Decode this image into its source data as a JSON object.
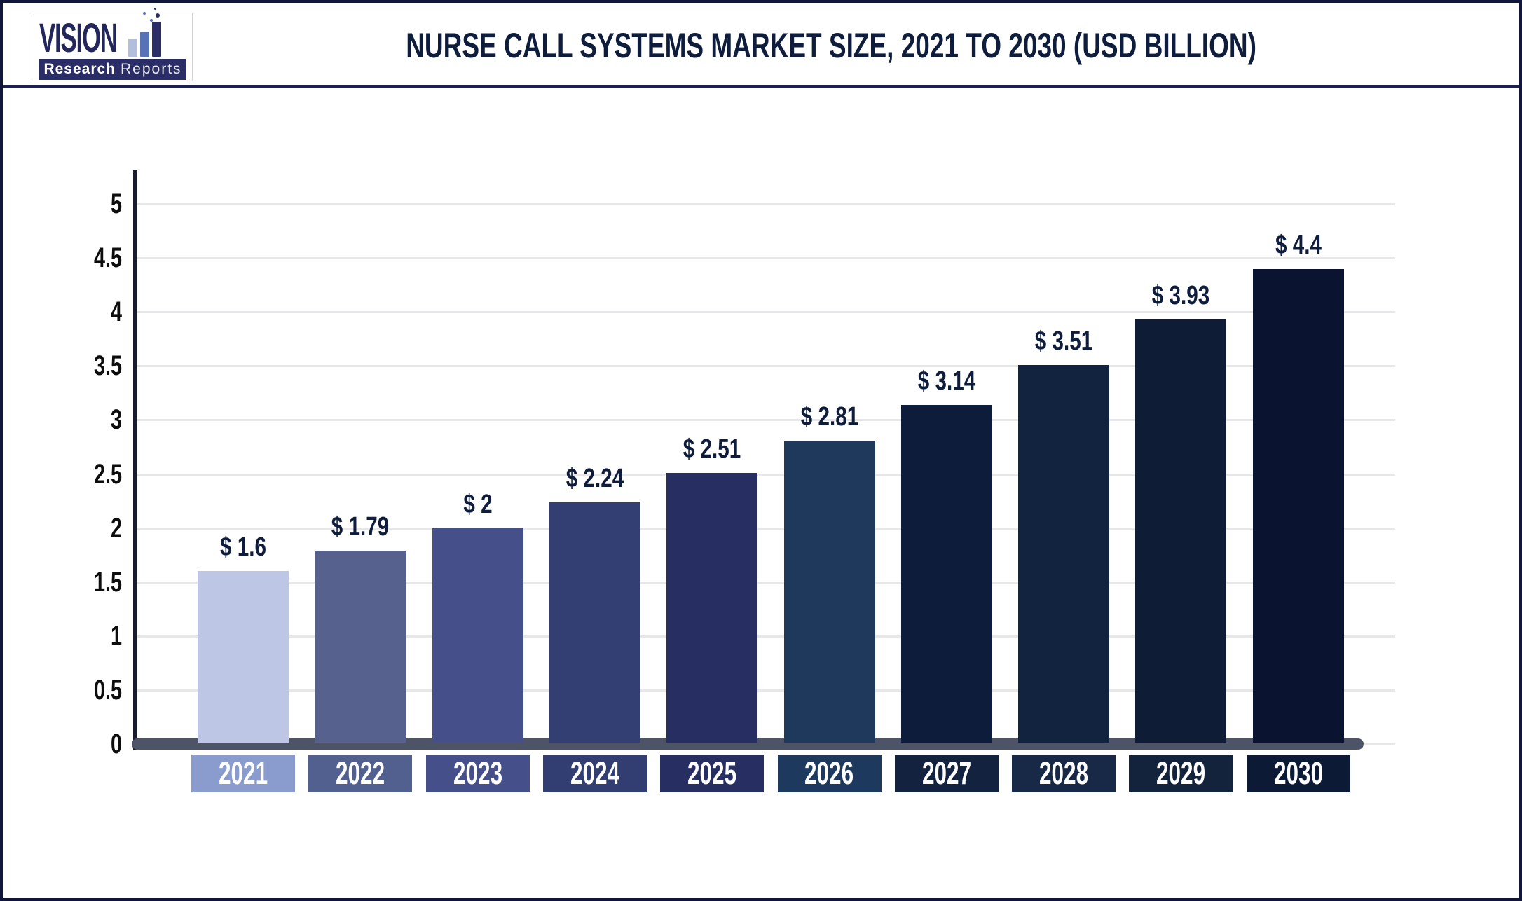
{
  "header": {
    "logo": {
      "brand": "VISION",
      "subtitle_bold": "Research",
      "subtitle_light": "Reports"
    },
    "title": "NURSE CALL SYSTEMS MARKET SIZE, 2021 TO 2030 (USD BILLION)"
  },
  "chart_data": {
    "type": "bar",
    "title": "NURSE CALL SYSTEMS MARKET SIZE, 2021 TO 2030 (USD BILLION)",
    "value_unit": "USD Billion",
    "categories": [
      "2021",
      "2022",
      "2023",
      "2024",
      "2025",
      "2026",
      "2027",
      "2028",
      "2029",
      "2030"
    ],
    "values": [
      1.6,
      1.79,
      2,
      2.24,
      2.51,
      2.81,
      3.14,
      3.51,
      3.93,
      4.4
    ],
    "value_labels": [
      "$ 1.6",
      "$ 1.79",
      "$ 2",
      "$ 2.24",
      "$ 2.51",
      "$ 2.81",
      "$ 3.14",
      "$ 3.51",
      "$ 3.93",
      "$ 4.4"
    ],
    "bar_colors": [
      "#bdc7e5",
      "#56618e",
      "#45508a",
      "#333e73",
      "#272e62",
      "#1f395c",
      "#0e1c3c",
      "#12233f",
      "#0e1c36",
      "#0a1431"
    ],
    "category_label_colors": [
      "#8a9ccd",
      "#51608e",
      "#45508a",
      "#323d72",
      "#272f62",
      "#1d395e",
      "#13223f",
      "#182947",
      "#14233c",
      "#0d1a35"
    ],
    "xlabel": "",
    "ylabel": "",
    "ylim": [
      0,
      5
    ],
    "ytick_step": 0.5,
    "yticks": [
      "0",
      "0.5",
      "1",
      "1.5",
      "2",
      "2.5",
      "3",
      "3.5",
      "4",
      "4.5",
      "5"
    ],
    "grid": true,
    "legend_position": "none"
  },
  "colors": {
    "accent_navy": "#0f1d3d",
    "border_navy": "#10173a",
    "axis_bar_gray": "#4e5468",
    "gridline_gray": "#e7e7e9",
    "logo_band_navy": "#2b2d67"
  }
}
